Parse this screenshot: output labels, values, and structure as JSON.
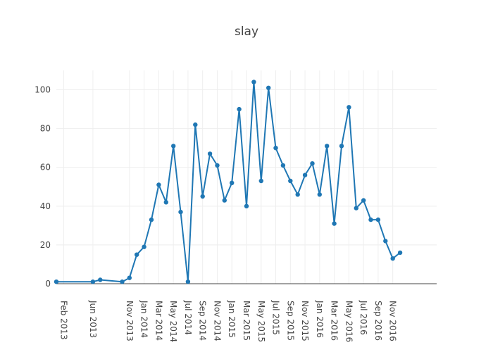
{
  "chart_data": {
    "type": "line",
    "title": "slay",
    "xlabel": "",
    "ylabel": "",
    "grid": true,
    "ylim": [
      0,
      110
    ],
    "xlim": [
      "2013-01",
      "2017-05"
    ],
    "yticks": [
      0,
      20,
      40,
      60,
      80,
      100
    ],
    "xticks": [
      {
        "value": "2013-02",
        "label": "Feb 2013"
      },
      {
        "value": "2013-06",
        "label": "Jun 2013"
      },
      {
        "value": "2013-11",
        "label": "Nov 2013"
      },
      {
        "value": "2014-01",
        "label": "Jan 2014"
      },
      {
        "value": "2014-03",
        "label": "Mar 2014"
      },
      {
        "value": "2014-05",
        "label": "May 2014"
      },
      {
        "value": "2014-07",
        "label": "Jul 2014"
      },
      {
        "value": "2014-09",
        "label": "Sep 2014"
      },
      {
        "value": "2014-11",
        "label": "Nov 2014"
      },
      {
        "value": "2015-01",
        "label": "Jan 2015"
      },
      {
        "value": "2015-03",
        "label": "Mar 2015"
      },
      {
        "value": "2015-05",
        "label": "May 2015"
      },
      {
        "value": "2015-07",
        "label": "Jul 2015"
      },
      {
        "value": "2015-09",
        "label": "Sep 2015"
      },
      {
        "value": "2015-11",
        "label": "Nov 2015"
      },
      {
        "value": "2016-01",
        "label": "Jan 2016"
      },
      {
        "value": "2016-03",
        "label": "Mar 2016"
      },
      {
        "value": "2016-05",
        "label": "May 2016"
      },
      {
        "value": "2016-07",
        "label": "Jul 2016"
      },
      {
        "value": "2016-09",
        "label": "Sep 2016"
      },
      {
        "value": "2016-11",
        "label": "Nov 2016"
      }
    ],
    "series": [
      {
        "color": "#1f77b4",
        "x": [
          "2013-01",
          "2013-06",
          "2013-07",
          "2013-10",
          "2013-11",
          "2013-12",
          "2014-01",
          "2014-02",
          "2014-03",
          "2014-04",
          "2014-05",
          "2014-06",
          "2014-07",
          "2014-08",
          "2014-09",
          "2014-10",
          "2014-11",
          "2014-12",
          "2015-01",
          "2015-02",
          "2015-03",
          "2015-04",
          "2015-05",
          "2015-06",
          "2015-07",
          "2015-08",
          "2015-09",
          "2015-10",
          "2015-11",
          "2015-12",
          "2016-01",
          "2016-02",
          "2016-03",
          "2016-04",
          "2016-05",
          "2016-06",
          "2016-07",
          "2016-08",
          "2016-09",
          "2016-10",
          "2016-11",
          "2016-12"
        ],
        "values": [
          1,
          1,
          2,
          1,
          3,
          15,
          19,
          33,
          51,
          42,
          71,
          37,
          1,
          82,
          45,
          67,
          61,
          43,
          52,
          90,
          40,
          104,
          53,
          101,
          70,
          61,
          53,
          46,
          56,
          62,
          46,
          71,
          31,
          71,
          91,
          39,
          43,
          33,
          33,
          22,
          13,
          16
        ]
      }
    ]
  }
}
